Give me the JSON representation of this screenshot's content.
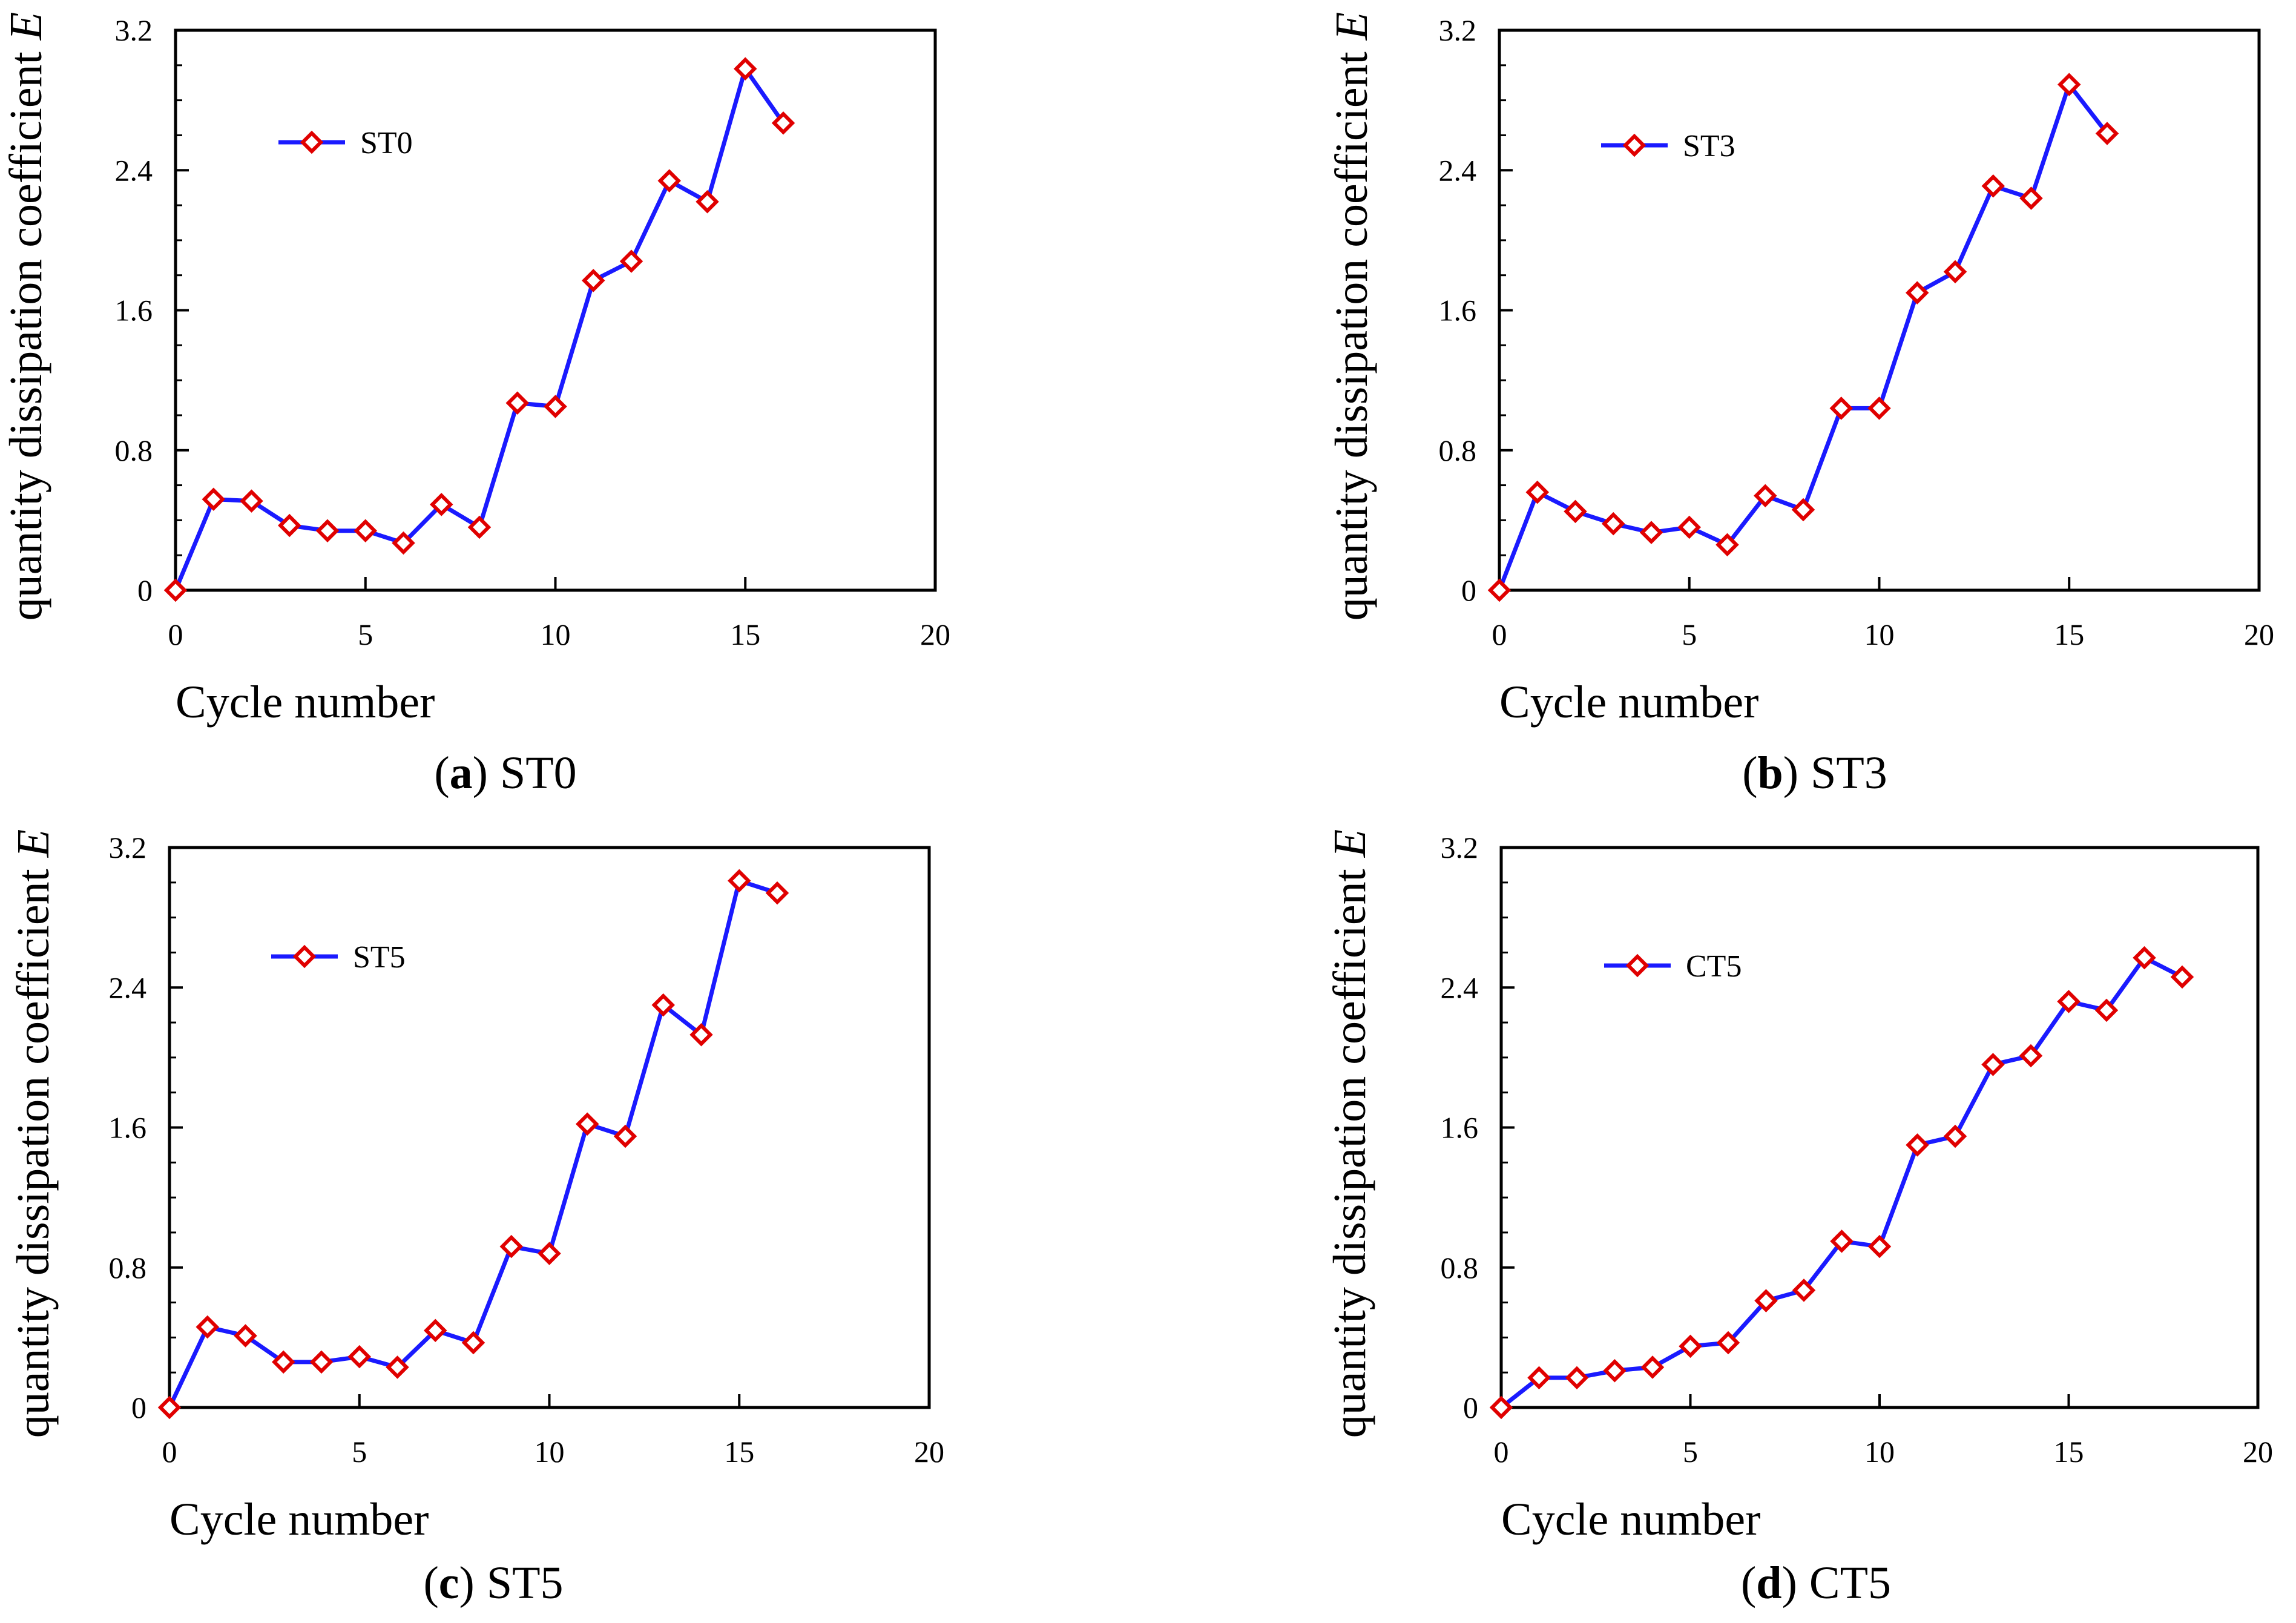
{
  "figure": {
    "panels": [
      {
        "panel_letter": "a",
        "caption_open": "(",
        "caption_close": ")",
        "caption_name": "ST0"
      },
      {
        "panel_letter": "b",
        "caption_open": "(",
        "caption_close": ")",
        "caption_name": "ST3"
      },
      {
        "panel_letter": "c",
        "caption_open": "(",
        "caption_close": ")",
        "caption_name": "ST5"
      },
      {
        "panel_letter": "d",
        "caption_open": "(",
        "caption_close": ")",
        "caption_name": "CT5"
      }
    ]
  },
  "colors": {
    "line": "#1a1aff",
    "marker": "#e00000",
    "axis": "#000000"
  },
  "chart_data": [
    {
      "type": "line",
      "xlabel": "Cycle number",
      "ylabel_main": "quantity dissipation coefficient ",
      "ylabel_var": "E",
      "xlim": [
        0,
        20
      ],
      "ylim": [
        0,
        3.2
      ],
      "xticks": [
        0,
        5,
        10,
        15,
        20
      ],
      "yticks": [
        "0",
        "0.8",
        "1.6",
        "2.4",
        "3.2"
      ],
      "grid": false,
      "legend_position": "top-left",
      "series": [
        {
          "name": "ST0",
          "x": [
            0,
            1,
            2,
            3,
            4,
            5,
            6,
            7,
            8,
            9,
            10,
            11,
            12,
            13,
            14,
            15,
            16
          ],
          "y": [
            0,
            0.52,
            0.51,
            0.37,
            0.34,
            0.34,
            0.27,
            0.49,
            0.36,
            1.07,
            1.05,
            1.77,
            1.88,
            2.34,
            2.22,
            2.98,
            2.67
          ]
        }
      ]
    },
    {
      "type": "line",
      "xlabel": "Cycle number",
      "ylabel_main": "quantity dissipation coefficient ",
      "ylabel_var": "E",
      "xlim": [
        0,
        20
      ],
      "ylim": [
        0,
        3.2
      ],
      "xticks": [
        0,
        5,
        10,
        15,
        20
      ],
      "yticks": [
        "0",
        "0.8",
        "1.6",
        "2.4",
        "3.2"
      ],
      "grid": false,
      "legend_position": "top-left",
      "series": [
        {
          "name": "ST3",
          "x": [
            0,
            1,
            2,
            3,
            4,
            5,
            6,
            7,
            8,
            9,
            10,
            11,
            12,
            13,
            14,
            15,
            16
          ],
          "y": [
            0,
            0.56,
            0.45,
            0.38,
            0.33,
            0.36,
            0.26,
            0.54,
            0.46,
            1.04,
            1.04,
            1.7,
            1.82,
            2.31,
            2.24,
            2.89,
            2.61
          ]
        }
      ]
    },
    {
      "type": "line",
      "xlabel": "Cycle number",
      "ylabel_main": "quantity dissipation coefficient ",
      "ylabel_var": "E",
      "xlim": [
        0,
        20
      ],
      "ylim": [
        0,
        3.2
      ],
      "xticks": [
        0,
        5,
        10,
        15,
        20
      ],
      "yticks": [
        "0",
        "0.8",
        "1.6",
        "2.4",
        "3.2"
      ],
      "grid": false,
      "legend_position": "top-left",
      "series": [
        {
          "name": "ST5",
          "x": [
            0,
            1,
            2,
            3,
            4,
            5,
            6,
            7,
            8,
            9,
            10,
            11,
            12,
            13,
            14,
            15,
            16
          ],
          "y": [
            0,
            0.46,
            0.41,
            0.26,
            0.26,
            0.29,
            0.23,
            0.44,
            0.37,
            0.92,
            0.88,
            1.62,
            1.55,
            2.3,
            2.13,
            3.01,
            2.94
          ]
        }
      ]
    },
    {
      "type": "line",
      "xlabel": "Cycle number",
      "ylabel_main": "quantity dissipation coefficient ",
      "ylabel_var": "E",
      "xlim": [
        0,
        20
      ],
      "ylim": [
        0,
        3.2
      ],
      "xticks": [
        0,
        5,
        10,
        15,
        20
      ],
      "yticks": [
        "0",
        "0.8",
        "1.6",
        "2.4",
        "3.2"
      ],
      "grid": false,
      "legend_position": "top-left",
      "series": [
        {
          "name": "CT5",
          "x": [
            0,
            1,
            2,
            3,
            4,
            5,
            6,
            7,
            8,
            9,
            10,
            11,
            12,
            13,
            14,
            15,
            16,
            17,
            18
          ],
          "y": [
            0,
            0.17,
            0.17,
            0.21,
            0.23,
            0.35,
            0.37,
            0.61,
            0.67,
            0.95,
            0.92,
            1.5,
            1.55,
            1.96,
            2.01,
            2.32,
            2.27,
            2.57,
            2.46
          ]
        }
      ]
    }
  ]
}
